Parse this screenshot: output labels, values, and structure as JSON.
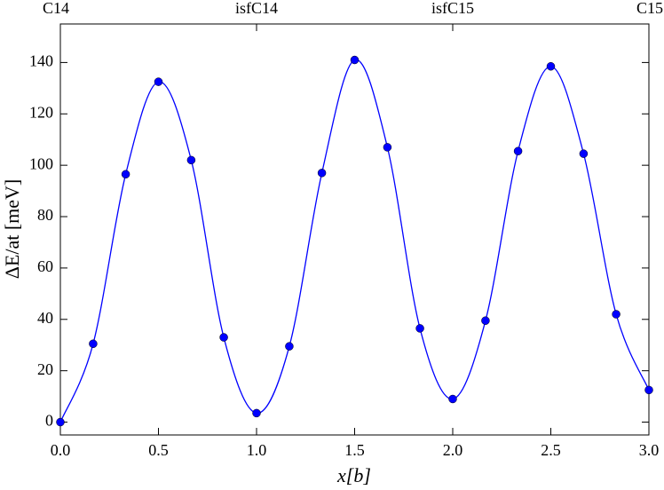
{
  "chart_data": {
    "type": "line",
    "x_label": "x[b]",
    "y_label": "ΔE/at [meV]",
    "x": [
      0,
      0.167,
      0.333,
      0.5,
      0.667,
      0.833,
      1.0,
      1.167,
      1.333,
      1.5,
      1.667,
      1.833,
      2.0,
      2.167,
      2.333,
      2.5,
      2.667,
      2.833,
      3.0
    ],
    "series": [
      {
        "color": "#0000ff",
        "values": [
          0,
          30.5,
          96.5,
          132.5,
          102,
          33,
          3.5,
          29.5,
          97,
          141,
          107,
          36.5,
          9,
          39.5,
          105.5,
          138.5,
          104.5,
          42,
          12.5
        ]
      }
    ],
    "xlim": [
      0,
      3
    ],
    "ylim": [
      -5,
      155
    ],
    "xticks": [
      {
        "value": 0,
        "label": "0.0"
      },
      0.5,
      {
        "value": 1,
        "label": "1.0"
      },
      1.5,
      {
        "value": 2,
        "label": "2.0"
      },
      2.5,
      {
        "value": 3,
        "label": "3.0"
      }
    ],
    "yticks": [
      0,
      20,
      40,
      60,
      80,
      100,
      120,
      140
    ],
    "top_ticks": [
      {
        "value": 0,
        "label": "C14"
      },
      {
        "value": 1,
        "label": "isfC14"
      },
      {
        "value": 2,
        "label": "isfC15"
      },
      {
        "value": 3,
        "label": "C15"
      }
    ],
    "grid": false,
    "markers": true
  }
}
